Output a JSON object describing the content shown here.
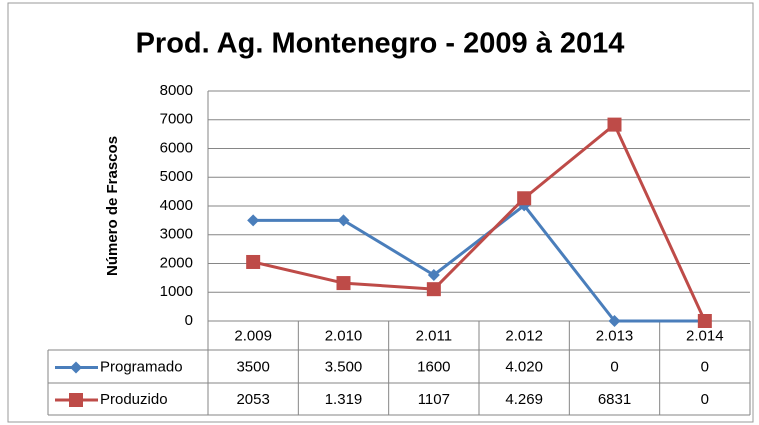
{
  "chart_data": {
    "type": "line",
    "title": "Prod. Ag. Montenegro - 2009 à 2014",
    "y_label": "Número de Frascos",
    "categories": [
      "2.009",
      "2.010",
      "2.011",
      "2.012",
      "2.013",
      "2.014"
    ],
    "series": [
      {
        "name": "Programado",
        "color": "#4a7ebb",
        "marker": "diamond",
        "values": [
          3500,
          3500,
          1600,
          4020,
          0,
          0
        ],
        "value_labels": [
          "3500",
          "3.500",
          "1600",
          "4.020",
          "0",
          "0"
        ]
      },
      {
        "name": "Produzido",
        "color": "#be4b48",
        "marker": "square",
        "values": [
          2053,
          1319,
          1107,
          4269,
          6831,
          0
        ],
        "value_labels": [
          "2053",
          "1.319",
          "1107",
          "4.269",
          "6831",
          "0"
        ]
      }
    ],
    "ylim": [
      0,
      8000
    ],
    "yticks": [
      0,
      1000,
      2000,
      3000,
      4000,
      5000,
      6000,
      7000,
      8000
    ],
    "grid": true
  }
}
